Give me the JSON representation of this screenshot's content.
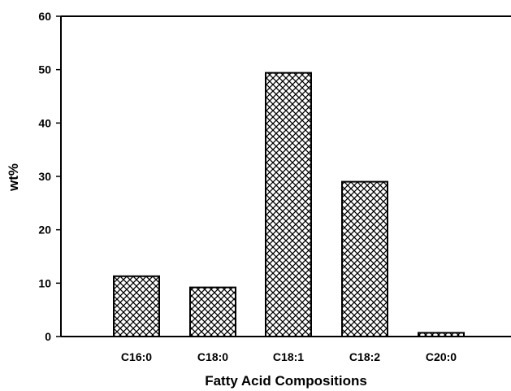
{
  "chart_data": {
    "type": "bar",
    "title": "",
    "xlabel": "Fatty Acid Compositions",
    "ylabel": "wt%",
    "categories": [
      "C16:0",
      "C18:0",
      "C18:1",
      "C18:2",
      "C20:0"
    ],
    "values": [
      11.3,
      9.2,
      49.4,
      29.0,
      0.7
    ],
    "ylim": [
      0,
      60
    ],
    "yticks": [
      "0",
      "10",
      "20",
      "30",
      "40",
      "50",
      "60"
    ],
    "grid": false,
    "legend": "none",
    "bar_fill": "crosshatch",
    "colors": {
      "bar_stroke": "#000000",
      "hatch": "#000000",
      "background": "#ffffff"
    }
  }
}
